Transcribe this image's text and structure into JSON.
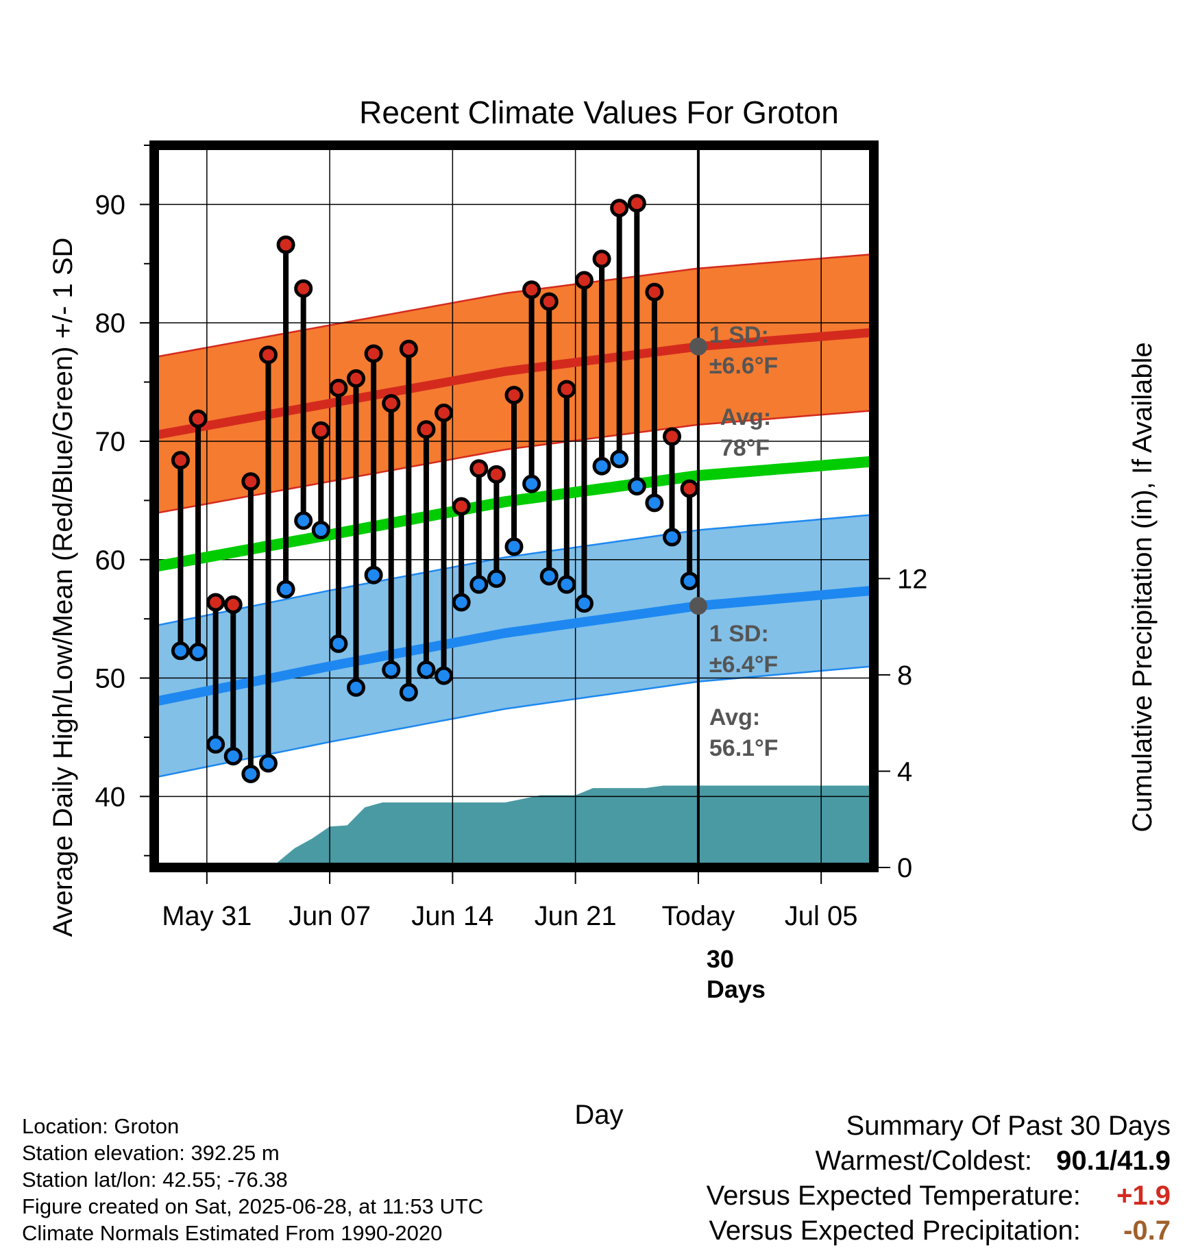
{
  "chart_data": {
    "type": "line",
    "title": "Recent Climate Values For Groton",
    "xlabel": "Day",
    "ylabel_left": "Average Daily High/Low/Mean (Red/Blue/Green) +/- 1 SD",
    "ylabel_right": "Cumulative Precipitation (in), If Available",
    "x_range": [
      "2025-05-28",
      "2025-07-08"
    ],
    "ylim_left": [
      34,
      95
    ],
    "ylim_right": [
      0,
      30
    ],
    "x_ticks": [
      {
        "date": "2025-05-31",
        "label": "May 31"
      },
      {
        "date": "2025-06-07",
        "label": "Jun 07"
      },
      {
        "date": "2025-06-14",
        "label": "Jun 14"
      },
      {
        "date": "2025-06-21",
        "label": "Jun 21"
      },
      {
        "date": "2025-06-28",
        "label": "Today"
      },
      {
        "date": "2025-07-05",
        "label": "Jul 05"
      }
    ],
    "y_ticks_left": [
      40,
      50,
      60,
      70,
      80,
      90
    ],
    "y_ticks_right": [
      0,
      4,
      8,
      12
    ],
    "grid": true,
    "today": "2025-06-28",
    "today_label": "30 Days",
    "normals": {
      "dates": [
        "2025-05-28",
        "2025-06-07",
        "2025-06-17",
        "2025-06-28",
        "2025-07-08"
      ],
      "avg_high": [
        70.5,
        73.2,
        75.9,
        78.0,
        79.2
      ],
      "high_sd": 6.6,
      "avg_low": [
        48.0,
        51.0,
        53.8,
        56.1,
        57.4
      ],
      "low_sd": 6.4,
      "avg_mean": [
        59.4,
        62.1,
        64.9,
        67.1,
        68.3
      ]
    },
    "today_avg_high": 78.0,
    "today_avg_low": 56.1,
    "high_sd_label": "1 SD:",
    "high_sd_value": "±6.6°F",
    "high_avg_label": "Avg:",
    "high_avg_value": "78°F",
    "low_sd_label": "1 SD:",
    "low_sd_value": "±6.4°F",
    "low_avg_label": "Avg:",
    "low_avg_value": "56.1°F",
    "daily": [
      {
        "date": "2025-05-29",
        "high": 68.4,
        "low": 52.3
      },
      {
        "date": "2025-05-30",
        "high": 71.9,
        "low": 52.2
      },
      {
        "date": "2025-05-31",
        "high": 56.4,
        "low": 44.4
      },
      {
        "date": "2025-06-01",
        "high": 56.2,
        "low": 43.4
      },
      {
        "date": "2025-06-02",
        "high": 66.6,
        "low": 41.9
      },
      {
        "date": "2025-06-03",
        "high": 77.3,
        "low": 42.8
      },
      {
        "date": "2025-06-04",
        "high": 86.6,
        "low": 57.5
      },
      {
        "date": "2025-06-05",
        "high": 82.9,
        "low": 63.3
      },
      {
        "date": "2025-06-06",
        "high": 70.9,
        "low": 62.5
      },
      {
        "date": "2025-06-07",
        "high": 74.5,
        "low": 52.9
      },
      {
        "date": "2025-06-08",
        "high": 75.3,
        "low": 49.2
      },
      {
        "date": "2025-06-09",
        "high": 77.4,
        "low": 58.7
      },
      {
        "date": "2025-06-10",
        "high": 73.2,
        "low": 50.7
      },
      {
        "date": "2025-06-11",
        "high": 77.8,
        "low": 48.8
      },
      {
        "date": "2025-06-12",
        "high": 71.0,
        "low": 50.7
      },
      {
        "date": "2025-06-13",
        "high": 72.4,
        "low": 50.2
      },
      {
        "date": "2025-06-14",
        "high": 64.5,
        "low": 56.4
      },
      {
        "date": "2025-06-15",
        "high": 67.7,
        "low": 57.9
      },
      {
        "date": "2025-06-16",
        "high": 67.2,
        "low": 58.4
      },
      {
        "date": "2025-06-17",
        "high": 73.9,
        "low": 61.1
      },
      {
        "date": "2025-06-18",
        "high": 82.8,
        "low": 66.4
      },
      {
        "date": "2025-06-19",
        "high": 81.8,
        "low": 58.6
      },
      {
        "date": "2025-06-20",
        "high": 74.4,
        "low": 57.9
      },
      {
        "date": "2025-06-21",
        "high": 83.6,
        "low": 56.3
      },
      {
        "date": "2025-06-22",
        "high": 85.4,
        "low": 67.9
      },
      {
        "date": "2025-06-23",
        "high": 89.7,
        "low": 68.5
      },
      {
        "date": "2025-06-24",
        "high": 90.1,
        "low": 66.2
      },
      {
        "date": "2025-06-25",
        "high": 82.6,
        "low": 64.8
      },
      {
        "date": "2025-06-26",
        "high": 70.4,
        "low": 61.9
      },
      {
        "date": "2025-06-27",
        "high": 66.0,
        "low": 58.2
      }
    ],
    "precip_cumulative": [
      {
        "date": "2025-05-31",
        "value": 0.0
      },
      {
        "date": "2025-06-01",
        "value": 0.2
      },
      {
        "date": "2025-06-04",
        "value": 0.2
      },
      {
        "date": "2025-06-05",
        "value": 0.8
      },
      {
        "date": "2025-06-06",
        "value": 1.2
      },
      {
        "date": "2025-06-07",
        "value": 1.7
      },
      {
        "date": "2025-06-08",
        "value": 1.75
      },
      {
        "date": "2025-06-09",
        "value": 2.5
      },
      {
        "date": "2025-06-10",
        "value": 2.7
      },
      {
        "date": "2025-06-17",
        "value": 2.7
      },
      {
        "date": "2025-06-18",
        "value": 2.85
      },
      {
        "date": "2025-06-19",
        "value": 3.0
      },
      {
        "date": "2025-06-21",
        "value": 3.0
      },
      {
        "date": "2025-06-22",
        "value": 3.3
      },
      {
        "date": "2025-06-25",
        "value": 3.3
      },
      {
        "date": "2025-06-26",
        "value": 3.4
      },
      {
        "date": "2025-07-08",
        "value": 3.4
      }
    ]
  },
  "info": {
    "location": "Location: Groton",
    "elevation": "Station elevation: 392.25 m",
    "latlon": "Station lat/lon: 42.55; -76.38",
    "created": "Figure created on Sat, 2025-06-28, at 11:53 UTC",
    "normals": "Climate Normals Estimated From 1990-2020"
  },
  "summary": {
    "title": "Summary Of Past 30 Days",
    "warm_cold_label": "Warmest/Coldest:",
    "warm_cold_value": "90.1/41.9",
    "temp_label": "Versus Expected Temperature:",
    "temp_value": "+1.9",
    "precip_label": "Versus Expected Precipitation:",
    "precip_value": "-0.7"
  },
  "colors": {
    "high_band": "#F47B30",
    "high_edge": "#D42A1E",
    "high_line": "#D42A1E",
    "low_band": "#82C0E8",
    "low_edge": "#1E88F0",
    "low_line": "#1E88F0",
    "mean_line": "#00CC00",
    "precip": "#4A9AA4",
    "high_dot": "#D42A1E",
    "low_dot": "#1E88F0",
    "avg_marker": "#555555",
    "temp_positive": "#D42A1E",
    "precip_negative": "#A0602A"
  }
}
